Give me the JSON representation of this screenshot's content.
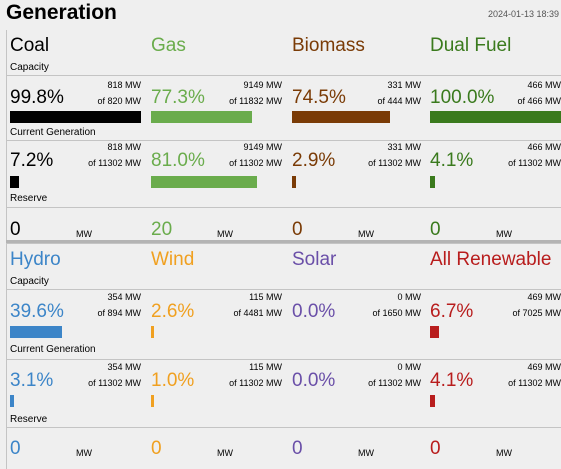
{
  "header": {
    "title": "Generation",
    "timestamp": "2024-01-13 18:39"
  },
  "section_labels": {
    "capacity": "Capacity",
    "current_generation": "Current Generation",
    "reserve": "Reserve"
  },
  "unit": "MW",
  "colors": {
    "coal": "#000000",
    "gas": "#6aac4c",
    "biomass": "#7a3b06",
    "dual_fuel": "#3a7a1d",
    "hydro": "#3c85c8",
    "wind": "#f0a020",
    "solar": "#6a4fa8",
    "all_renewable": "#b81d1d"
  },
  "fuels": [
    {
      "name": "Coal",
      "capacity_pct": "99.8%",
      "capacity_mw": "818 MW",
      "capacity_of": "of 820 MW",
      "capacity_fill": 0.998,
      "gen_pct": "7.2%",
      "gen_mw": "818 MW",
      "gen_of": "of 11302 MW",
      "gen_fill": 0.072,
      "reserve": "0"
    },
    {
      "name": "Gas",
      "capacity_pct": "77.3%",
      "capacity_mw": "9149 MW",
      "capacity_of": "of 11832 MW",
      "capacity_fill": 0.773,
      "gen_pct": "81.0%",
      "gen_mw": "9149 MW",
      "gen_of": "of 11302 MW",
      "gen_fill": 0.81,
      "reserve": "20"
    },
    {
      "name": "Biomass",
      "capacity_pct": "74.5%",
      "capacity_mw": "331 MW",
      "capacity_of": "of 444 MW",
      "capacity_fill": 0.745,
      "gen_pct": "2.9%",
      "gen_mw": "331 MW",
      "gen_of": "of 11302 MW",
      "gen_fill": 0.029,
      "reserve": "0"
    },
    {
      "name": "Dual Fuel",
      "capacity_pct": "100.0%",
      "capacity_mw": "466 MW",
      "capacity_of": "of 466 MW",
      "capacity_fill": 1.0,
      "gen_pct": "4.1%",
      "gen_mw": "466 MW",
      "gen_of": "of 11302 MW",
      "gen_fill": 0.041,
      "reserve": "0"
    },
    {
      "name": "Hydro",
      "capacity_pct": "39.6%",
      "capacity_mw": "354 MW",
      "capacity_of": "of 894 MW",
      "capacity_fill": 0.396,
      "gen_pct": "3.1%",
      "gen_mw": "354 MW",
      "gen_of": "of 11302 MW",
      "gen_fill": 0.031,
      "reserve": "0"
    },
    {
      "name": "Wind",
      "capacity_pct": "2.6%",
      "capacity_mw": "115 MW",
      "capacity_of": "of 4481 MW",
      "capacity_fill": 0.026,
      "gen_pct": "1.0%",
      "gen_mw": "115 MW",
      "gen_of": "of 11302 MW",
      "gen_fill": 0.01,
      "reserve": "0"
    },
    {
      "name": "Solar",
      "capacity_pct": "0.0%",
      "capacity_mw": "0 MW",
      "capacity_of": "of 1650 MW",
      "capacity_fill": 0.0,
      "gen_pct": "0.0%",
      "gen_mw": "0 MW",
      "gen_of": "of 11302 MW",
      "gen_fill": 0.0,
      "reserve": "0"
    },
    {
      "name": "All Renewable",
      "capacity_pct": "6.7%",
      "capacity_mw": "469 MW",
      "capacity_of": "of 7025 MW",
      "capacity_fill": 0.067,
      "gen_pct": "4.1%",
      "gen_mw": "469 MW",
      "gen_of": "of 11302 MW",
      "gen_fill": 0.041,
      "reserve": "0"
    }
  ]
}
